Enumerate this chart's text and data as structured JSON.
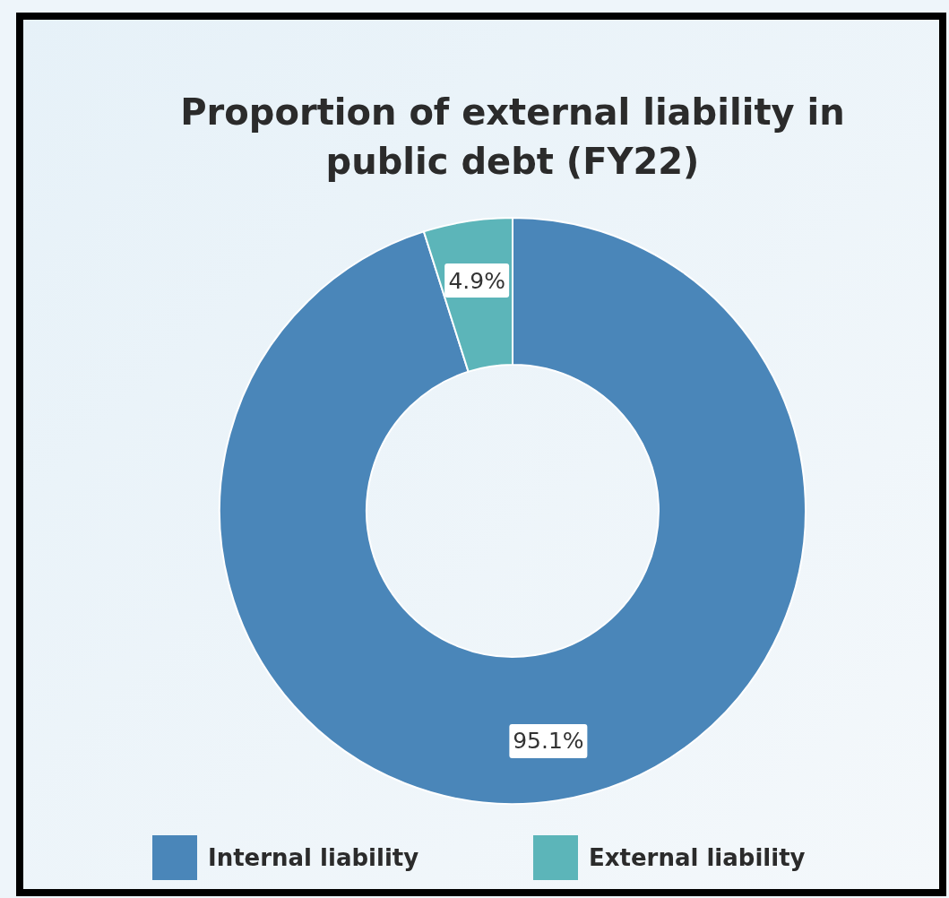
{
  "chart_data": {
    "type": "donut",
    "title": "Proportion of external liability in public debt (FY22)",
    "categories": [
      "Internal liability",
      "External liability"
    ],
    "values": [
      95.1,
      4.9
    ],
    "colors": [
      "#4a86b9",
      "#5cb5b9"
    ],
    "value_labels": [
      "95.1%",
      "4.9%"
    ],
    "legend": "bottom"
  }
}
